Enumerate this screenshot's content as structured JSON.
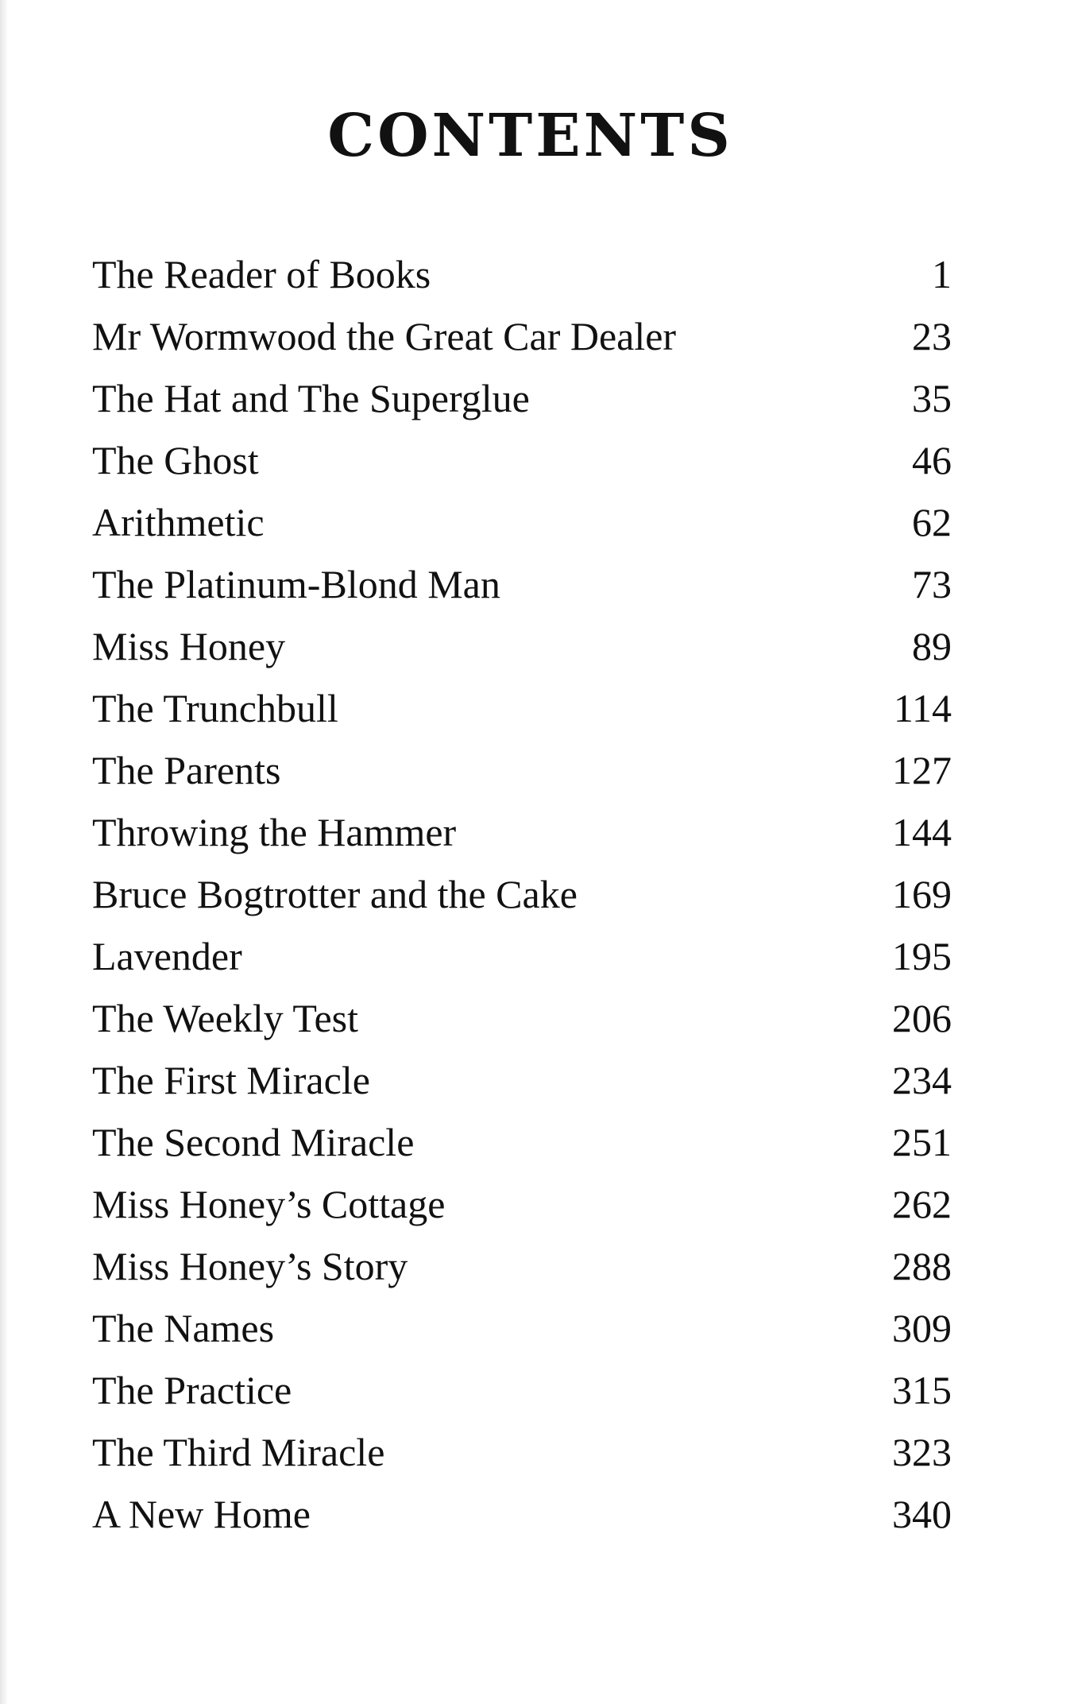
{
  "title": "CONTENTS",
  "entries": [
    {
      "title": "The Reader of Books",
      "page": "1"
    },
    {
      "title": "Mr Wormwood the Great Car Dealer",
      "page": "23"
    },
    {
      "title": "The Hat and The Superglue",
      "page": "35"
    },
    {
      "title": "The Ghost",
      "page": "46"
    },
    {
      "title": "Arithmetic",
      "page": "62"
    },
    {
      "title": "The Platinum-Blond Man",
      "page": "73"
    },
    {
      "title": "Miss Honey",
      "page": "89"
    },
    {
      "title": "The Trunchbull",
      "page": "114"
    },
    {
      "title": "The Parents",
      "page": "127"
    },
    {
      "title": "Throwing the Hammer",
      "page": "144"
    },
    {
      "title": "Bruce Bogtrotter and the Cake",
      "page": "169"
    },
    {
      "title": "Lavender",
      "page": "195"
    },
    {
      "title": "The Weekly Test",
      "page": "206"
    },
    {
      "title": "The First Miracle",
      "page": "234"
    },
    {
      "title": "The Second Miracle",
      "page": "251"
    },
    {
      "title": "Miss Honey’s Cottage",
      "page": "262"
    },
    {
      "title": "Miss Honey’s Story",
      "page": "288"
    },
    {
      "title": "The Names",
      "page": "309"
    },
    {
      "title": "The Practice",
      "page": "315"
    },
    {
      "title": "The Third Miracle",
      "page": "323"
    },
    {
      "title": "A New Home",
      "page": "340"
    }
  ]
}
